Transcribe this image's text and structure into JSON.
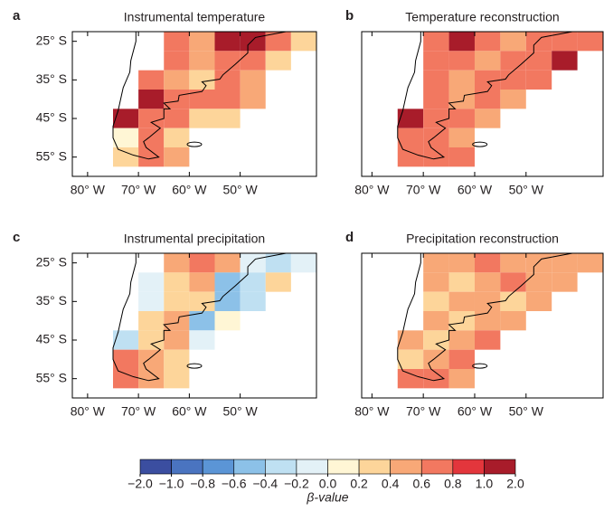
{
  "panels": [
    {
      "letter": "a",
      "title": "Instrumental temperature",
      "xlim": [
        -83,
        -35
      ],
      "ylim": [
        -60,
        -22.5
      ],
      "xticks": [
        {
          "value": -80,
          "label": "80° W"
        },
        {
          "value": -70,
          "label": "70° W"
        },
        {
          "value": -60,
          "label": "60° W"
        },
        {
          "value": -50,
          "label": "50° W"
        }
      ],
      "yticks": [
        {
          "value": -25,
          "label": "25° S"
        },
        {
          "value": -35,
          "label": "35° S"
        },
        {
          "value": -45,
          "label": "45° S"
        },
        {
          "value": -55,
          "label": "55° S"
        }
      ],
      "lon_edges": [
        -75,
        -70,
        -65,
        -60,
        -55,
        -50,
        -45,
        -40,
        -35
      ],
      "lat_edges": [
        -22.5,
        -27.5,
        -32.5,
        -37.5,
        -42.5,
        -47.5,
        -52.5,
        -57.5
      ],
      "cells": [
        [
          null,
          null,
          0.7,
          0.5,
          1.2,
          1.2,
          0.7,
          0.3
        ],
        [
          null,
          null,
          0.7,
          0.5,
          0.7,
          0.7,
          0.3,
          null
        ],
        [
          null,
          0.7,
          0.5,
          0.3,
          0.7,
          0.5,
          null,
          null
        ],
        [
          null,
          1.2,
          0.7,
          0.7,
          0.7,
          0.5,
          null,
          null
        ],
        [
          1.2,
          0.7,
          0.7,
          0.3,
          0.3,
          null,
          null,
          null
        ],
        [
          0.1,
          0.7,
          0.3,
          null,
          null,
          null,
          null,
          null
        ],
        [
          0.3,
          0.7,
          0.5,
          null,
          null,
          null,
          null,
          null
        ]
      ]
    },
    {
      "letter": "b",
      "title": "Temperature reconstruction",
      "xlim": [
        -82,
        -35
      ],
      "ylim": [
        -60,
        -22.5
      ],
      "xticks": [
        {
          "value": -80,
          "label": "80° W"
        },
        {
          "value": -70,
          "label": "70° W"
        },
        {
          "value": -60,
          "label": "60° W"
        },
        {
          "value": -50,
          "label": "50° W"
        }
      ],
      "lon_edges": [
        -75,
        -70,
        -65,
        -60,
        -55,
        -50,
        -45,
        -40,
        -35
      ],
      "lat_edges": [
        -22.5,
        -27.5,
        -32.5,
        -37.5,
        -42.5,
        -47.5,
        -52.5,
        -57.5
      ],
      "cells": [
        [
          null,
          0.7,
          1.2,
          0.7,
          0.5,
          0.7,
          0.7,
          0.7
        ],
        [
          null,
          0.7,
          0.7,
          0.5,
          0.7,
          0.7,
          1.2,
          null
        ],
        [
          null,
          0.7,
          0.5,
          0.7,
          0.7,
          0.7,
          null,
          null
        ],
        [
          null,
          0.7,
          0.5,
          0.7,
          0.5,
          null,
          null,
          null
        ],
        [
          1.2,
          0.7,
          0.7,
          0.5,
          null,
          null,
          null,
          null
        ],
        [
          0.7,
          0.7,
          0.5,
          null,
          null,
          null,
          null,
          null
        ],
        [
          0.7,
          0.7,
          0.7,
          null,
          null,
          null,
          null,
          null
        ]
      ]
    },
    {
      "letter": "c",
      "title": "Instrumental precipitation",
      "xlim": [
        -83,
        -35
      ],
      "ylim": [
        -60,
        -22.5
      ],
      "xticks": [
        {
          "value": -80,
          "label": "80° W"
        },
        {
          "value": -70,
          "label": "70° W"
        },
        {
          "value": -60,
          "label": "60° W"
        },
        {
          "value": -50,
          "label": "50° W"
        }
      ],
      "yticks": [
        {
          "value": -25,
          "label": "25° S"
        },
        {
          "value": -35,
          "label": "35° S"
        },
        {
          "value": -45,
          "label": "45° S"
        },
        {
          "value": -55,
          "label": "55° S"
        }
      ],
      "lon_edges": [
        -75,
        -70,
        -65,
        -60,
        -55,
        -50,
        -45,
        -40,
        -35
      ],
      "lat_edges": [
        -22.5,
        -27.5,
        -32.5,
        -37.5,
        -42.5,
        -47.5,
        -52.5,
        -57.5
      ],
      "cells": [
        [
          null,
          null,
          0.5,
          0.7,
          0.5,
          -0.1,
          -0.3,
          -0.1
        ],
        [
          null,
          -0.1,
          0.3,
          0.5,
          -0.5,
          -0.3,
          0.3,
          null
        ],
        [
          null,
          -0.1,
          0.3,
          0.3,
          -0.5,
          -0.3,
          null,
          null
        ],
        [
          null,
          0.3,
          0.5,
          -0.5,
          0.1,
          null,
          null,
          null
        ],
        [
          -0.3,
          0.3,
          0.5,
          -0.1,
          null,
          null,
          null,
          null
        ],
        [
          0.7,
          0.5,
          0.3,
          null,
          null,
          null,
          null,
          null
        ],
        [
          0.7,
          0.5,
          0.3,
          null,
          null,
          null,
          null,
          null
        ]
      ]
    },
    {
      "letter": "d",
      "title": "Precipitation reconstruction",
      "xlim": [
        -82,
        -35
      ],
      "ylim": [
        -60,
        -22.5
      ],
      "xticks": [
        {
          "value": -80,
          "label": "80° W"
        },
        {
          "value": -70,
          "label": "70° W"
        },
        {
          "value": -60,
          "label": "60° W"
        },
        {
          "value": -50,
          "label": "50° W"
        }
      ],
      "lon_edges": [
        -75,
        -70,
        -65,
        -60,
        -55,
        -50,
        -45,
        -40,
        -35
      ],
      "lat_edges": [
        -22.5,
        -27.5,
        -32.5,
        -37.5,
        -42.5,
        -47.5,
        -52.5,
        -57.5
      ],
      "cells": [
        [
          null,
          0.5,
          0.5,
          0.7,
          0.5,
          0.5,
          0.5,
          0.5
        ],
        [
          null,
          0.5,
          0.3,
          0.5,
          0.7,
          0.5,
          0.5,
          null
        ],
        [
          null,
          0.3,
          0.5,
          0.5,
          0.3,
          0.5,
          null,
          null
        ],
        [
          null,
          0.5,
          0.3,
          0.5,
          0.5,
          null,
          null,
          null
        ],
        [
          0.5,
          0.3,
          0.5,
          0.7,
          null,
          null,
          null,
          null
        ],
        [
          0.3,
          0.5,
          0.7,
          null,
          null,
          null,
          null,
          null
        ],
        [
          0.7,
          0.7,
          0.5,
          null,
          null,
          null,
          null,
          null
        ]
      ]
    }
  ],
  "colorbar": {
    "label": "β-value",
    "colors": [
      "#3b4ea0",
      "#4a74c0",
      "#5b95d6",
      "#8cc1e8",
      "#bfe0f2",
      "#e3f1f7",
      "#fff6d5",
      "#fdd59a",
      "#f8a877",
      "#f27860",
      "#e3363c",
      "#a81c2a"
    ],
    "ticks": [
      {
        "value": -2,
        "label": "−2.0"
      },
      {
        "value": -1,
        "label": "−1.0"
      },
      {
        "value": -0.8,
        "label": "−0.8"
      },
      {
        "value": -0.6,
        "label": "−0.6"
      },
      {
        "value": -0.4,
        "label": "−0.4"
      },
      {
        "value": -0.2,
        "label": "−0.2"
      },
      {
        "value": 0,
        "label": "0.0"
      },
      0.2,
      0.4,
      0.6,
      0.8,
      {
        "value": 1,
        "label": "1.0"
      },
      {
        "value": 2,
        "label": "2.0"
      }
    ]
  }
}
